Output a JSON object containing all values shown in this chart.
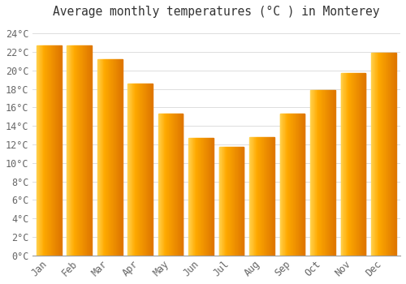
{
  "title": "Average monthly temperatures (°C ) in Monterey",
  "months": [
    "Jan",
    "Feb",
    "Mar",
    "Apr",
    "May",
    "Jun",
    "Jul",
    "Aug",
    "Sep",
    "Oct",
    "Nov",
    "Dec"
  ],
  "values": [
    22.7,
    22.7,
    21.2,
    18.6,
    15.3,
    12.7,
    11.7,
    12.8,
    15.3,
    17.9,
    19.7,
    21.9
  ],
  "bar_color_main": "#FFAA00",
  "bar_color_light": "#FFD060",
  "bar_color_dark": "#E07800",
  "ylim": [
    0,
    25
  ],
  "ytick_step": 2,
  "background_color": "#ffffff",
  "grid_color": "#dddddd",
  "title_fontsize": 10.5,
  "tick_fontsize": 8.5,
  "tick_color": "#666666"
}
